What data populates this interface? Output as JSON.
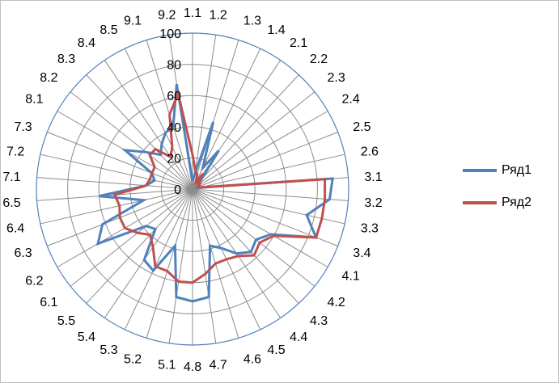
{
  "chart_data": {
    "type": "radar",
    "categories": [
      "1.1",
      "1.2",
      "1.3",
      "1.4",
      "2.1",
      "2.2",
      "2.3",
      "2.4",
      "2.5",
      "2.6",
      "3.1",
      "3.2",
      "3.3",
      "3.4",
      "4.1",
      "4.2",
      "4.3",
      "4.4",
      "4.5",
      "4.6",
      "4.7",
      "4.8",
      "5.1",
      "5.2",
      "5.3",
      "5.4",
      "5.5",
      "6.1",
      "6.2",
      "6.3",
      "6.4",
      "6.5",
      "7.1",
      "7.2",
      "7.3",
      "8.1",
      "8.2",
      "8.3",
      "8.4",
      "8.5",
      "9.1",
      "9.2"
    ],
    "r_ticks": [
      0,
      20,
      40,
      60,
      80,
      100
    ],
    "r_range": [
      0,
      100
    ],
    "grid": true,
    "legend_position": "right",
    "series": [
      {
        "name": "Ряд1",
        "color": "#4f81bd",
        "values": [
          5,
          10,
          45,
          15,
          30,
          8,
          5,
          4,
          3,
          4,
          90,
          88,
          75,
          85,
          58,
          52,
          55,
          50,
          42,
          38,
          70,
          72,
          70,
          38,
          58,
          55,
          35,
          38,
          70,
          62,
          32,
          60,
          30,
          25,
          28,
          50,
          38,
          30,
          35,
          40,
          42,
          68
        ]
      },
      {
        "name": "Ряд2",
        "color": "#c0504d",
        "values": [
          22,
          12,
          10,
          5,
          12,
          5,
          6,
          5,
          4,
          5,
          85,
          85,
          85,
          85,
          60,
          55,
          58,
          52,
          50,
          50,
          55,
          60,
          60,
          55,
          55,
          45,
          40,
          45,
          50,
          50,
          48,
          50,
          30,
          28,
          28,
          28,
          35,
          35,
          25,
          30,
          50,
          62
        ]
      }
    ]
  }
}
